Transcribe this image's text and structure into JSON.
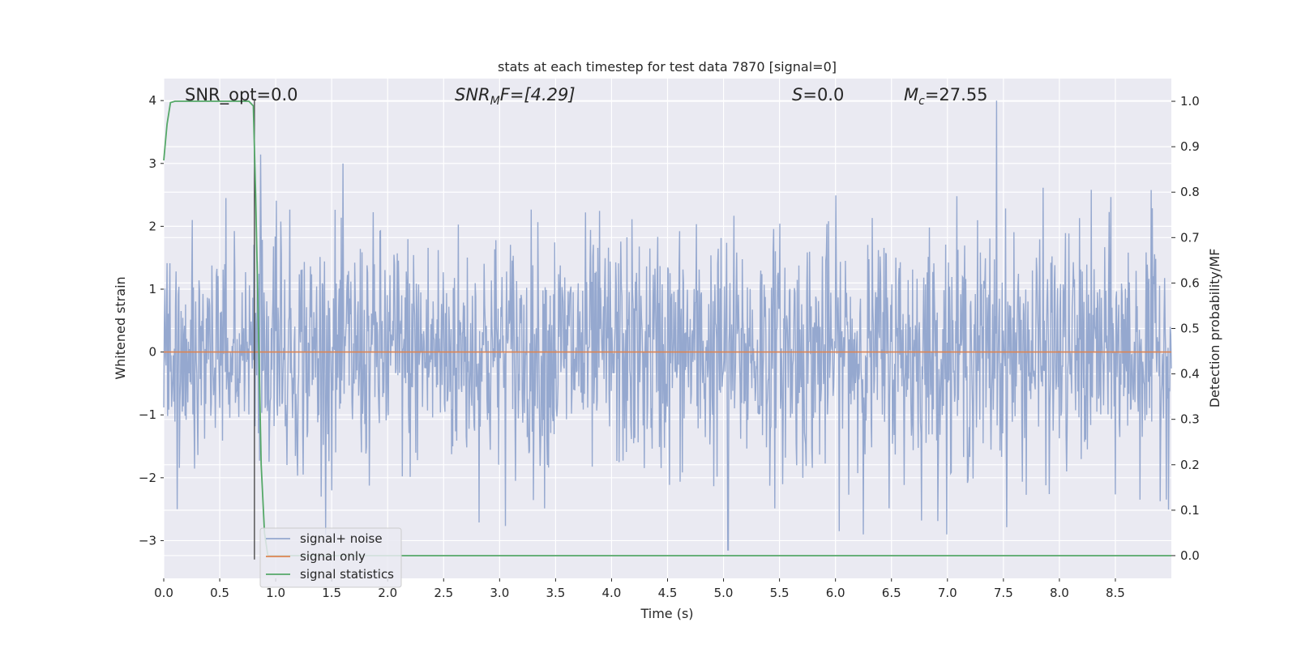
{
  "chart_data": {
    "type": "line",
    "title": "stats at each timestep for test data 7870 [signal=0]",
    "xlabel": "Time (s)",
    "ylabel": "Whitened strain",
    "y2label": "Detection probability/MF",
    "xlim": [
      0.0,
      9.0
    ],
    "ylim": [
      -3.6,
      4.35
    ],
    "y2lim": [
      -0.05,
      1.05
    ],
    "xticks": [
      0.0,
      0.5,
      1.0,
      1.5,
      2.0,
      2.5,
      3.0,
      3.5,
      4.0,
      4.5,
      5.0,
      5.5,
      6.0,
      6.5,
      7.0,
      7.5,
      8.0,
      8.5
    ],
    "xtick_labels": [
      "0.0",
      "0.5",
      "1.0",
      "1.5",
      "2.0",
      "2.5",
      "3.0",
      "3.5",
      "4.0",
      "4.5",
      "5.0",
      "5.5",
      "6.0",
      "6.5",
      "7.0",
      "7.5",
      "8.0",
      "8.5"
    ],
    "yticks": [
      -3,
      -2,
      -1,
      0,
      1,
      2,
      3,
      4
    ],
    "ytick_labels": [
      "−3",
      "−2",
      "−1",
      "0",
      "1",
      "2",
      "3",
      "4"
    ],
    "y2ticks": [
      0.0,
      0.1,
      0.2,
      0.3,
      0.4,
      0.5,
      0.6,
      0.7,
      0.8,
      0.9,
      1.0
    ],
    "y2tick_labels": [
      "0.0",
      "0.1",
      "0.2",
      "0.3",
      "0.4",
      "0.5",
      "0.6",
      "0.7",
      "0.8",
      "0.9",
      "1.0"
    ],
    "grid": true,
    "legend_position": "lower-left",
    "annotations": {
      "snr_opt": "SNR_opt=0.0",
      "snr_mf_main": "SNR",
      "snr_mf_sub": "M",
      "snr_mf_rest": "F=[4.29]",
      "s_main": "S",
      "s_rest": "=0.0",
      "mc_main": "M",
      "mc_sub": "c",
      "mc_rest": "=27.55"
    },
    "vline_x": 0.81,
    "vline_range": [
      -3.3,
      4.0
    ],
    "series": [
      {
        "name": "signal+ noise",
        "color": "#95a8cf",
        "axis": "left",
        "kind": "noise",
        "points_count": 1800,
        "envelope": {
          "p_ymin": -3.15,
          "p_ymax": 4.0,
          "p_x_at_max": 7.44,
          "p_x_at_min": 5.04
        }
      },
      {
        "name": "signal only",
        "color": "#dd8452",
        "axis": "left",
        "x": [
          0.0,
          9.0
        ],
        "y": [
          0.0,
          0.0
        ]
      },
      {
        "name": "signal statistics",
        "color": "#55a868",
        "axis": "right",
        "x": [
          0.0,
          0.03,
          0.06,
          0.1,
          0.15,
          0.2,
          0.3,
          0.4,
          0.5,
          0.6,
          0.7,
          0.76,
          0.8,
          0.82,
          0.85,
          0.87,
          0.9,
          0.93,
          0.95,
          1.0,
          2.0,
          3.0,
          4.0,
          5.0,
          6.0,
          7.0,
          8.0,
          9.0
        ],
        "y": [
          0.87,
          0.95,
          0.997,
          1.0,
          1.0,
          1.0,
          1.0,
          1.0,
          1.0,
          1.0,
          1.0,
          1.0,
          0.99,
          0.8,
          0.45,
          0.2,
          0.05,
          0.0,
          0.0,
          0.0,
          0.0,
          0.0,
          0.0,
          0.0,
          0.0,
          0.0,
          0.0,
          0.0
        ]
      }
    ]
  }
}
